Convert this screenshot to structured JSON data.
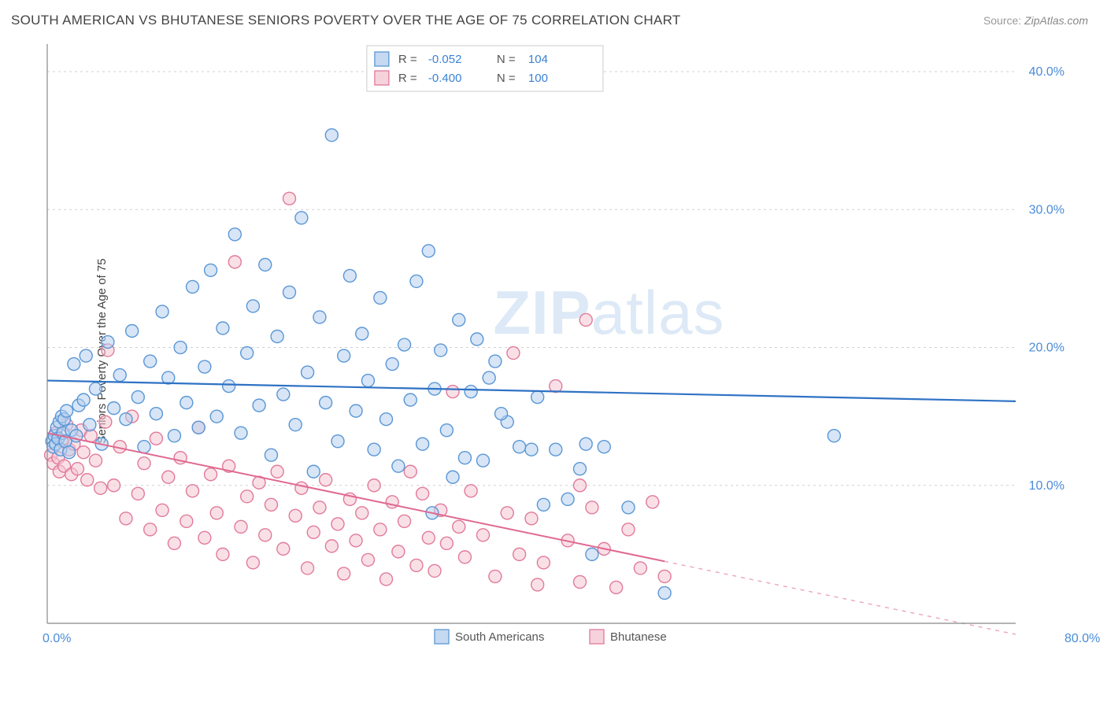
{
  "title": "SOUTH AMERICAN VS BHUTANESE SENIORS POVERTY OVER THE AGE OF 75 CORRELATION CHART",
  "source_label": "Source:",
  "source_value": "ZipAtlas.com",
  "y_axis_label": "Seniors Poverty Over the Age of 75",
  "watermark_a": "ZIP",
  "watermark_b": "atlas",
  "chart": {
    "type": "scatter-correlation",
    "background_color": "#ffffff",
    "grid_color": "#d0d0d0",
    "axis_color": "#888888",
    "tick_color": "#4a8cd8",
    "watermark_color": "#d8e6f5",
    "xlim": [
      0,
      80
    ],
    "ylim": [
      0,
      42
    ],
    "ytick_values": [
      10,
      20,
      30,
      40
    ],
    "ytick_labels": [
      "10.0%",
      "20.0%",
      "30.0%",
      "40.0%"
    ],
    "xtick_left": "0.0%",
    "xtick_right": "80.0%",
    "series": [
      {
        "key": "south_americans",
        "label": "South Americans",
        "marker_fill": "#b6d0ee",
        "marker_stroke": "#5a97d6",
        "marker_fill_opacity": 0.55,
        "marker_radius": 8,
        "line_color": "#2f72c4",
        "line_width": 2.2,
        "r_value": "-0.052",
        "n_value": "104",
        "regression": {
          "x0": 0,
          "y0": 17.6,
          "x1": 80,
          "y1": 16.1,
          "solid_until_x": 80
        },
        "points": [
          [
            0.4,
            13.2
          ],
          [
            0.5,
            12.8
          ],
          [
            0.6,
            13.6
          ],
          [
            0.7,
            13.0
          ],
          [
            0.8,
            14.2
          ],
          [
            0.9,
            13.4
          ],
          [
            1.0,
            14.6
          ],
          [
            1.1,
            12.6
          ],
          [
            1.2,
            15.0
          ],
          [
            1.3,
            13.8
          ],
          [
            1.4,
            14.8
          ],
          [
            1.5,
            13.2
          ],
          [
            1.6,
            15.4
          ],
          [
            1.8,
            12.4
          ],
          [
            2.0,
            14.0
          ],
          [
            2.2,
            18.8
          ],
          [
            2.4,
            13.6
          ],
          [
            2.6,
            15.8
          ],
          [
            3.0,
            16.2
          ],
          [
            3.2,
            19.4
          ],
          [
            3.5,
            14.4
          ],
          [
            4.0,
            17.0
          ],
          [
            4.5,
            13.0
          ],
          [
            5.0,
            20.4
          ],
          [
            5.5,
            15.6
          ],
          [
            6.0,
            18.0
          ],
          [
            6.5,
            14.8
          ],
          [
            7.0,
            21.2
          ],
          [
            7.5,
            16.4
          ],
          [
            8.0,
            12.8
          ],
          [
            8.5,
            19.0
          ],
          [
            9.0,
            15.2
          ],
          [
            9.5,
            22.6
          ],
          [
            10.0,
            17.8
          ],
          [
            10.5,
            13.6
          ],
          [
            11.0,
            20.0
          ],
          [
            11.5,
            16.0
          ],
          [
            12.0,
            24.4
          ],
          [
            12.5,
            14.2
          ],
          [
            13.0,
            18.6
          ],
          [
            13.5,
            25.6
          ],
          [
            14.0,
            15.0
          ],
          [
            14.5,
            21.4
          ],
          [
            15.0,
            17.2
          ],
          [
            15.5,
            28.2
          ],
          [
            16.0,
            13.8
          ],
          [
            16.5,
            19.6
          ],
          [
            17.0,
            23.0
          ],
          [
            17.5,
            15.8
          ],
          [
            18.0,
            26.0
          ],
          [
            18.5,
            12.2
          ],
          [
            19.0,
            20.8
          ],
          [
            19.5,
            16.6
          ],
          [
            20.0,
            24.0
          ],
          [
            20.5,
            14.4
          ],
          [
            21.0,
            29.4
          ],
          [
            21.5,
            18.2
          ],
          [
            22.0,
            11.0
          ],
          [
            22.5,
            22.2
          ],
          [
            23.0,
            16.0
          ],
          [
            23.5,
            35.4
          ],
          [
            24.0,
            13.2
          ],
          [
            24.5,
            19.4
          ],
          [
            25.0,
            25.2
          ],
          [
            25.5,
            15.4
          ],
          [
            26.0,
            21.0
          ],
          [
            26.5,
            17.6
          ],
          [
            27.0,
            12.6
          ],
          [
            27.5,
            23.6
          ],
          [
            28.0,
            14.8
          ],
          [
            28.5,
            18.8
          ],
          [
            29.0,
            11.4
          ],
          [
            29.5,
            20.2
          ],
          [
            30.0,
            16.2
          ],
          [
            30.5,
            24.8
          ],
          [
            31.0,
            13.0
          ],
          [
            31.5,
            27.0
          ],
          [
            32.0,
            17.0
          ],
          [
            32.5,
            19.8
          ],
          [
            33.0,
            14.0
          ],
          [
            34.0,
            22.0
          ],
          [
            35.0,
            16.8
          ],
          [
            36.0,
            11.8
          ],
          [
            37.0,
            19.0
          ],
          [
            38.0,
            14.6
          ],
          [
            36.5,
            17.8
          ],
          [
            35.5,
            20.6
          ],
          [
            39.0,
            12.8
          ],
          [
            40.0,
            12.6
          ],
          [
            40.5,
            16.4
          ],
          [
            41.0,
            8.6
          ],
          [
            42.0,
            12.6
          ],
          [
            43.0,
            9.0
          ],
          [
            44.0,
            11.2
          ],
          [
            44.5,
            13.0
          ],
          [
            45.0,
            5.0
          ],
          [
            46.0,
            12.8
          ],
          [
            48.0,
            8.4
          ],
          [
            51.0,
            2.2
          ],
          [
            65.0,
            13.6
          ],
          [
            34.5,
            12.0
          ],
          [
            37.5,
            15.2
          ],
          [
            33.5,
            10.6
          ],
          [
            31.8,
            8.0
          ]
        ]
      },
      {
        "key": "bhutanese",
        "label": "Bhutanese",
        "marker_fill": "#f4c7d3",
        "marker_stroke": "#e27a9a",
        "marker_fill_opacity": 0.55,
        "marker_radius": 8,
        "line_color": "#e06890",
        "line_width": 2.0,
        "r_value": "-0.400",
        "n_value": "100",
        "regression": {
          "x0": 0,
          "y0": 13.8,
          "x1": 80,
          "y1": -0.8,
          "solid_until_x": 51
        },
        "points": [
          [
            0.3,
            12.2
          ],
          [
            0.5,
            11.6
          ],
          [
            0.7,
            13.8
          ],
          [
            0.9,
            12.0
          ],
          [
            1.0,
            11.0
          ],
          [
            1.2,
            13.2
          ],
          [
            1.4,
            11.4
          ],
          [
            1.6,
            14.4
          ],
          [
            1.8,
            12.6
          ],
          [
            2.0,
            10.8
          ],
          [
            2.2,
            13.0
          ],
          [
            2.5,
            11.2
          ],
          [
            2.8,
            14.0
          ],
          [
            3.0,
            12.4
          ],
          [
            3.3,
            10.4
          ],
          [
            3.6,
            13.6
          ],
          [
            4.0,
            11.8
          ],
          [
            4.4,
            9.8
          ],
          [
            4.8,
            14.6
          ],
          [
            5.0,
            19.8
          ],
          [
            5.5,
            10.0
          ],
          [
            6.0,
            12.8
          ],
          [
            6.5,
            7.6
          ],
          [
            7.0,
            15.0
          ],
          [
            7.5,
            9.4
          ],
          [
            8.0,
            11.6
          ],
          [
            8.5,
            6.8
          ],
          [
            9.0,
            13.4
          ],
          [
            9.5,
            8.2
          ],
          [
            10.0,
            10.6
          ],
          [
            10.5,
            5.8
          ],
          [
            11.0,
            12.0
          ],
          [
            11.5,
            7.4
          ],
          [
            12.0,
            9.6
          ],
          [
            12.5,
            14.2
          ],
          [
            13.0,
            6.2
          ],
          [
            13.5,
            10.8
          ],
          [
            14.0,
            8.0
          ],
          [
            14.5,
            5.0
          ],
          [
            15.0,
            11.4
          ],
          [
            15.5,
            26.2
          ],
          [
            16.0,
            7.0
          ],
          [
            16.5,
            9.2
          ],
          [
            17.0,
            4.4
          ],
          [
            17.5,
            10.2
          ],
          [
            18.0,
            6.4
          ],
          [
            18.5,
            8.6
          ],
          [
            19.0,
            11.0
          ],
          [
            19.5,
            5.4
          ],
          [
            20.0,
            30.8
          ],
          [
            20.5,
            7.8
          ],
          [
            21.0,
            9.8
          ],
          [
            21.5,
            4.0
          ],
          [
            22.0,
            6.6
          ],
          [
            22.5,
            8.4
          ],
          [
            23.0,
            10.4
          ],
          [
            23.5,
            5.6
          ],
          [
            24.0,
            7.2
          ],
          [
            24.5,
            3.6
          ],
          [
            25.0,
            9.0
          ],
          [
            25.5,
            6.0
          ],
          [
            26.0,
            8.0
          ],
          [
            26.5,
            4.6
          ],
          [
            27.0,
            10.0
          ],
          [
            27.5,
            6.8
          ],
          [
            28.0,
            3.2
          ],
          [
            28.5,
            8.8
          ],
          [
            29.0,
            5.2
          ],
          [
            29.5,
            7.4
          ],
          [
            30.0,
            11.0
          ],
          [
            30.5,
            4.2
          ],
          [
            31.0,
            9.4
          ],
          [
            31.5,
            6.2
          ],
          [
            32.0,
            3.8
          ],
          [
            32.5,
            8.2
          ],
          [
            33.0,
            5.8
          ],
          [
            33.5,
            16.8
          ],
          [
            34.0,
            7.0
          ],
          [
            34.5,
            4.8
          ],
          [
            35.0,
            9.6
          ],
          [
            36.0,
            6.4
          ],
          [
            37.0,
            3.4
          ],
          [
            38.0,
            8.0
          ],
          [
            38.5,
            19.6
          ],
          [
            39.0,
            5.0
          ],
          [
            40.0,
            7.6
          ],
          [
            41.0,
            4.4
          ],
          [
            42.0,
            17.2
          ],
          [
            43.0,
            6.0
          ],
          [
            44.0,
            3.0
          ],
          [
            44.5,
            22.0
          ],
          [
            45.0,
            8.4
          ],
          [
            46.0,
            5.4
          ],
          [
            47.0,
            2.6
          ],
          [
            48.0,
            6.8
          ],
          [
            49.0,
            4.0
          ],
          [
            50.0,
            8.8
          ],
          [
            51.0,
            3.4
          ],
          [
            44.0,
            10.0
          ],
          [
            40.5,
            2.8
          ]
        ]
      }
    ],
    "stats_legend": {
      "r_label": "R =",
      "n_label": "N =",
      "value_color": "#3a82d6",
      "label_color": "#555555",
      "border_color": "#cccccc"
    }
  }
}
